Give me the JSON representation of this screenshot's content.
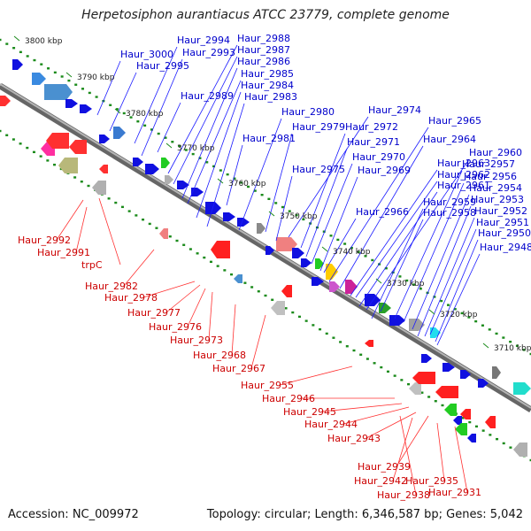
{
  "header": {
    "title": "Herpetosiphon aurantiacus ATCC 23779, complete genome"
  },
  "footer": {
    "accession": "Accession: NC_009972",
    "topology": "Topology: circular; Length: 6,346,587 bp; Genes: 5,042"
  },
  "colors": {
    "backbone": "#8a8a8a",
    "forward_label": "#0000cc",
    "reverse_label": "#cc0000",
    "forward_feature": "#0a0ae6",
    "reverse_feature": "#ff1a1a",
    "tick": "#1a8a1a",
    "leader": "#1a1aff"
  },
  "kbp_ticks": [
    "3800 kbp",
    "3790 kbp",
    "3780 kbp",
    "3770 kbp",
    "3760 kbp",
    "3750 kbp",
    "3740 kbp",
    "3730 kbp",
    "3720 kbp",
    "3710 kbp"
  ],
  "forward_genes": [
    "Haur_3000",
    "Haur_2995",
    "Haur_2994",
    "Haur_2993",
    "Haur_2989",
    "Haur_2988",
    "Haur_2987",
    "Haur_2986",
    "Haur_2985",
    "Haur_2984",
    "Haur_2983",
    "Haur_2981",
    "Haur_2980",
    "Haur_2979",
    "Haur_2975",
    "Haur_2974",
    "Haur_2972",
    "Haur_2971",
    "Haur_2970",
    "Haur_2969",
    "Haur_2966",
    "Haur_2965",
    "Haur_2964",
    "Haur_2963",
    "Haur_2962",
    "Haur_2961",
    "Haur_2960",
    "Haur_2959",
    "Haur_2958",
    "Haur_2957",
    "Haur_2956",
    "Haur_2954",
    "Haur_2953",
    "Haur_2952",
    "Haur_2951",
    "Haur_2950",
    "Haur_2948"
  ],
  "reverse_genes": [
    "Haur_2992",
    "Haur_2991",
    "trpC",
    "Haur_2982",
    "Haur_2978",
    "Haur_2977",
    "Haur_2976",
    "Haur_2973",
    "Haur_2968",
    "Haur_2967",
    "Haur_2955",
    "Haur_2946",
    "Haur_2945",
    "Haur_2944",
    "Haur_2943",
    "Haur_2939",
    "Haur_2942",
    "Haur_2935",
    "Haur_2938",
    "Haur_2931"
  ]
}
